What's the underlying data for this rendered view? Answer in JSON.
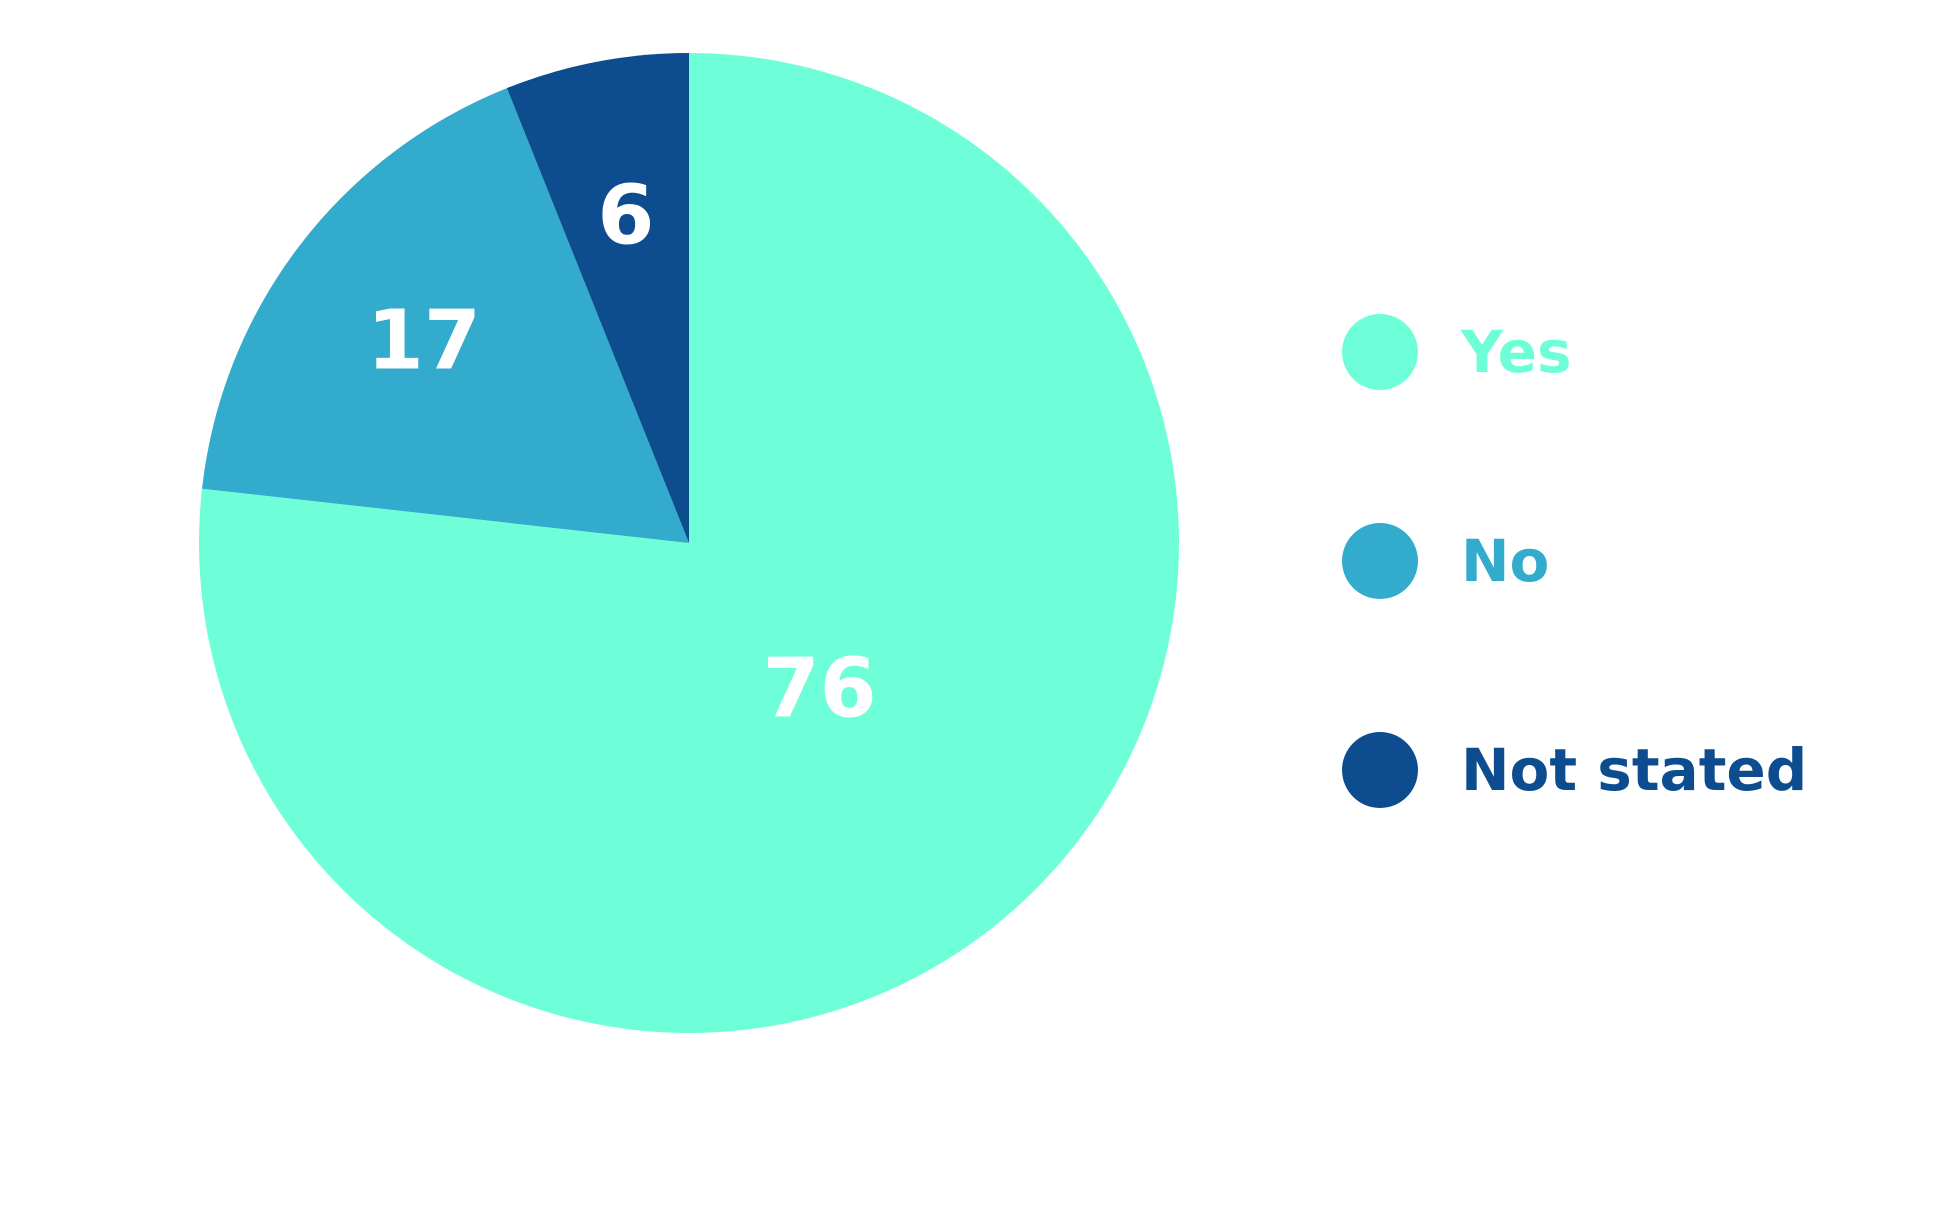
{
  "chart_data": {
    "type": "pie",
    "categories": [
      "Yes",
      "No",
      "Not stated"
    ],
    "values": [
      76,
      17,
      6
    ],
    "colors": [
      "#6fffd8",
      "#33abcc",
      "#0d4d8f"
    ],
    "legend": "right"
  }
}
